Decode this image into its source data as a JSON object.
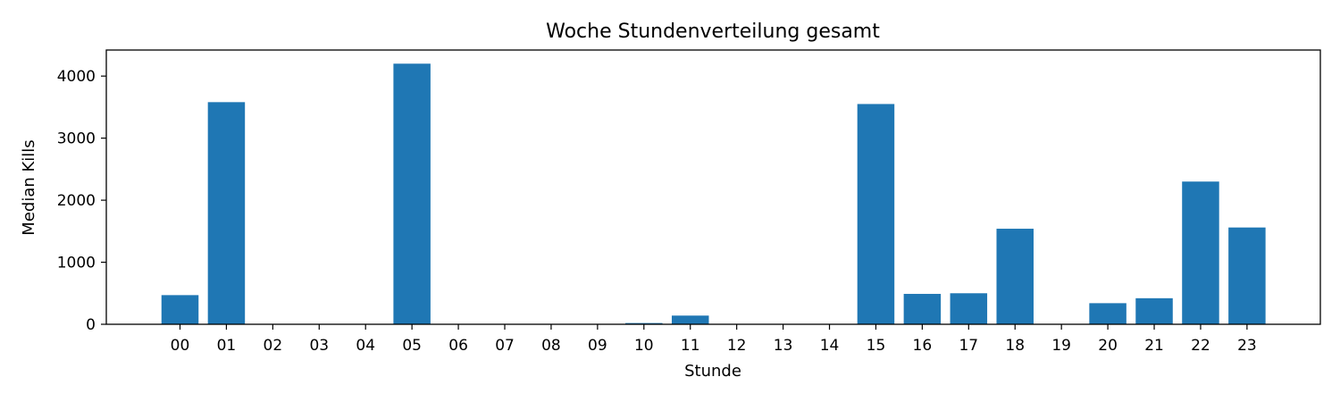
{
  "chart_data": {
    "type": "bar",
    "title": "Woche Stundenverteilung gesamt",
    "xlabel": "Stunde",
    "ylabel": "Median Kills",
    "categories": [
      "00",
      "01",
      "02",
      "03",
      "04",
      "05",
      "06",
      "07",
      "08",
      "09",
      "10",
      "11",
      "12",
      "13",
      "14",
      "15",
      "16",
      "17",
      "18",
      "19",
      "20",
      "21",
      "22",
      "23"
    ],
    "values": [
      470,
      3580,
      0,
      0,
      0,
      4200,
      0,
      0,
      0,
      0,
      20,
      140,
      0,
      0,
      0,
      3550,
      490,
      500,
      1540,
      0,
      340,
      420,
      2300,
      1560
    ],
    "yticks": [
      0,
      1000,
      2000,
      3000,
      4000
    ],
    "ylim": [
      0,
      4420
    ],
    "color": "#1f77b4",
    "grid": false,
    "legend": null
  }
}
